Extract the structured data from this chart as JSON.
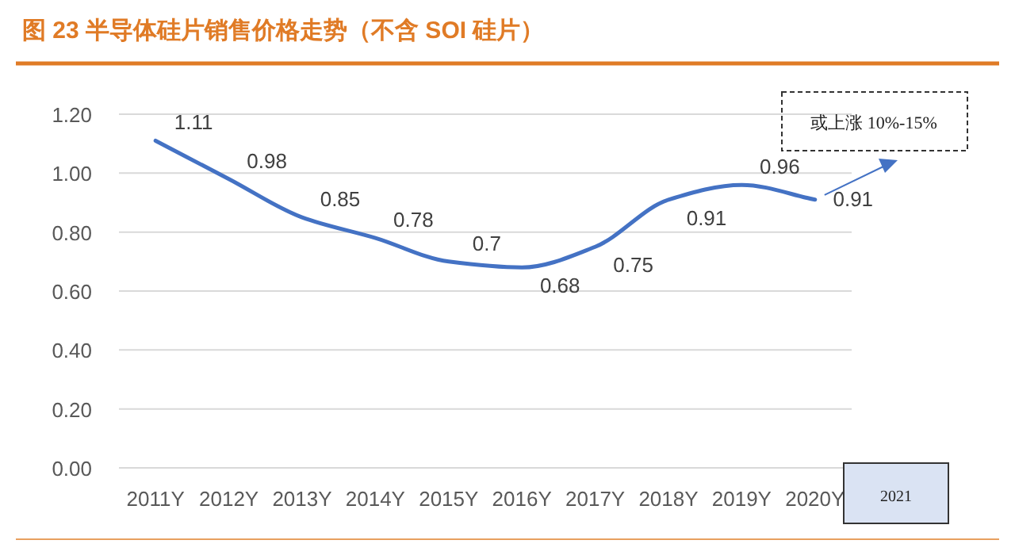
{
  "chart_data": {
    "type": "line",
    "title": "图 23 半导体硅片销售价格走势（不含 SOI 硅片）",
    "categories": [
      "2011Y",
      "2012Y",
      "2013Y",
      "2014Y",
      "2015Y",
      "2016Y",
      "2017Y",
      "2018Y",
      "2019Y",
      "2020Y"
    ],
    "series": [
      {
        "color": "#4472c4",
        "values": [
          1.11,
          0.98,
          0.85,
          0.78,
          0.7,
          0.68,
          0.75,
          0.91,
          0.96,
          0.91
        ]
      }
    ],
    "ylim": [
      0,
      1.2
    ],
    "yticks": [
      {
        "value": 0,
        "label": "0.00"
      },
      {
        "value": 0.2,
        "label": "0.20"
      },
      {
        "value": 0.4,
        "label": "0.40"
      },
      {
        "value": 0.6,
        "label": "0.60"
      },
      {
        "value": 0.8,
        "label": "0.80"
      },
      {
        "value": 1.0,
        "label": "1.00"
      },
      {
        "value": 1.2,
        "label": "1.20"
      }
    ],
    "grid": "y",
    "marker": "none",
    "line_style": "solid",
    "data_labels": true,
    "annotations": [
      "或上涨 10%-15%",
      "2021"
    ]
  }
}
